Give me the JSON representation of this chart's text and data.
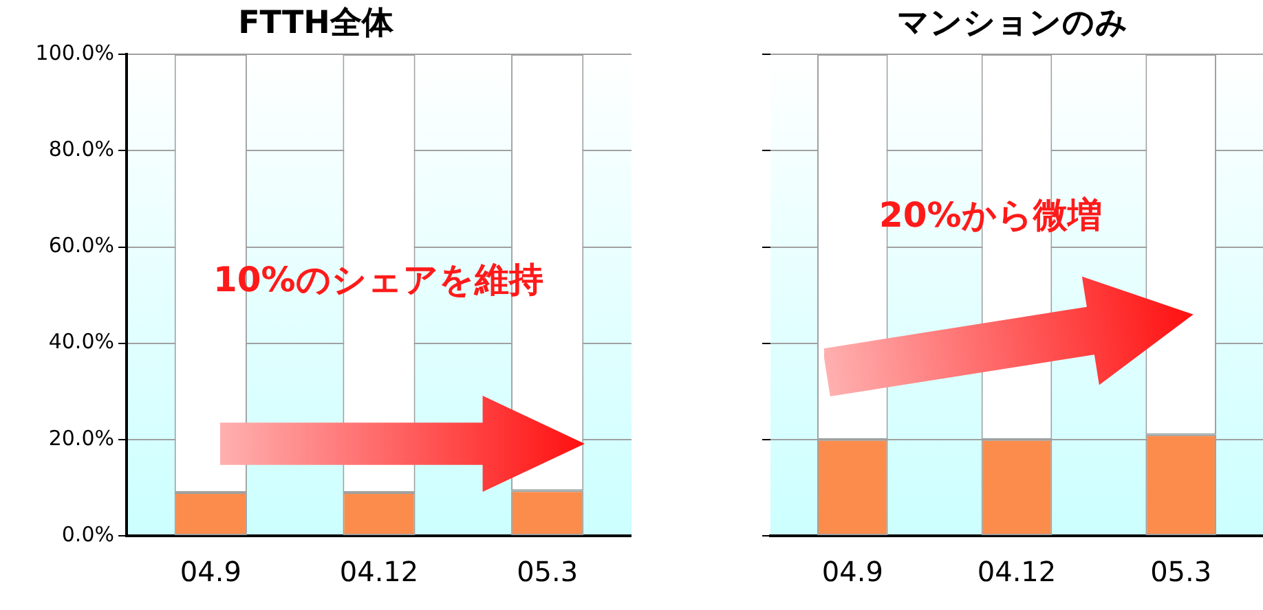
{
  "chart_data": [
    {
      "type": "bar",
      "title": "FTTH全体",
      "categories": [
        "04.9",
        "04.12",
        "05.3"
      ],
      "stacked": true,
      "series": [
        {
          "color": "#fb8c4c",
          "values": [
            9,
            9,
            9.4
          ]
        },
        {
          "color": "#ffffff",
          "values": [
            91,
            91,
            90.6
          ]
        }
      ],
      "ylim": [
        0,
        100
      ],
      "yticks": [
        {
          "value": 0,
          "label": "0.0%"
        },
        {
          "value": 20,
          "label": "20.0%"
        },
        {
          "value": 40,
          "label": "40.0%"
        },
        {
          "value": 60,
          "label": "60.0%"
        },
        {
          "value": 80,
          "label": "80.0%"
        },
        {
          "value": 100,
          "label": "100.0%"
        }
      ],
      "grid": "y",
      "annotations": [
        "10%のシェアを維持"
      ]
    },
    {
      "type": "bar",
      "title": "マンションのみ",
      "categories": [
        "04.9",
        "04.12",
        "05.3"
      ],
      "stacked": true,
      "series": [
        {
          "color": "#fb8c4c",
          "values": [
            20,
            20,
            21
          ]
        },
        {
          "color": "#ffffff",
          "values": [
            80,
            80,
            79
          ]
        }
      ],
      "ylim": [
        0,
        100
      ],
      "yticks": [
        {
          "value": 0,
          "label": null
        },
        {
          "value": 20,
          "label": null
        },
        {
          "value": 40,
          "label": null
        },
        {
          "value": 60,
          "label": null
        },
        {
          "value": 80,
          "label": null
        },
        {
          "value": 100,
          "label": null
        }
      ],
      "grid": "y",
      "tick_labels": "x",
      "annotations": [
        "20%から微増"
      ]
    }
  ]
}
